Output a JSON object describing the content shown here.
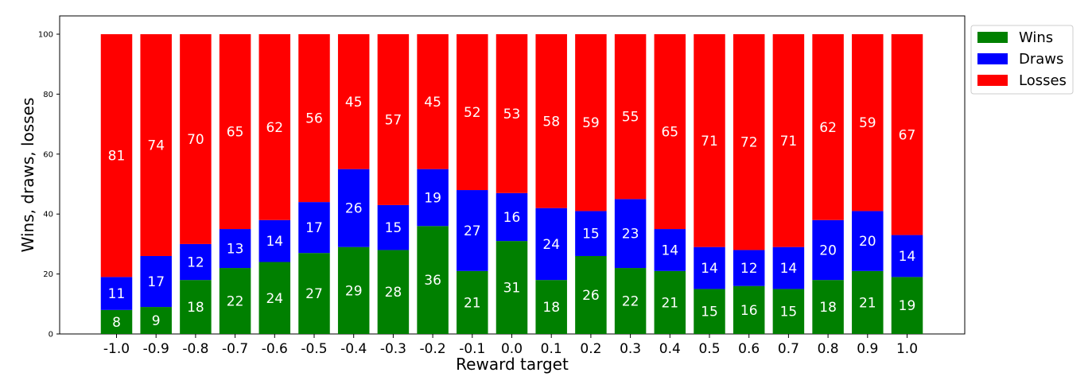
{
  "chart_data": {
    "type": "bar",
    "stacked": true,
    "xlabel": "Reward target",
    "ylabel": "Wins, draws, losses",
    "ylim": [
      0,
      100
    ],
    "yticks": [
      "0",
      "20",
      "40",
      "60",
      "80",
      "100"
    ],
    "legend_position": "top-right, outside plot",
    "categories": [
      "-1.0",
      "-0.9",
      "-0.8",
      "-0.7",
      "-0.6",
      "-0.5",
      "-0.4",
      "-0.3",
      "-0.2",
      "-0.1",
      "0.0",
      "0.1",
      "0.2",
      "0.3",
      "0.4",
      "0.5",
      "0.6",
      "0.7",
      "0.8",
      "0.9",
      "1.0"
    ],
    "series": [
      {
        "name": "Wins",
        "color": "#008000",
        "values": [
          8,
          9,
          18,
          22,
          24,
          27,
          29,
          28,
          36,
          21,
          31,
          18,
          26,
          22,
          21,
          15,
          16,
          15,
          18,
          21,
          19
        ]
      },
      {
        "name": "Draws",
        "color": "#0000ff",
        "values": [
          11,
          17,
          12,
          13,
          14,
          17,
          26,
          15,
          19,
          27,
          16,
          24,
          15,
          23,
          14,
          14,
          12,
          14,
          20,
          20,
          14
        ]
      },
      {
        "name": "Losses",
        "color": "#ff0000",
        "values": [
          81,
          74,
          70,
          65,
          62,
          56,
          45,
          57,
          45,
          52,
          53,
          58,
          59,
          55,
          65,
          71,
          72,
          71,
          62,
          59,
          67
        ]
      }
    ]
  }
}
